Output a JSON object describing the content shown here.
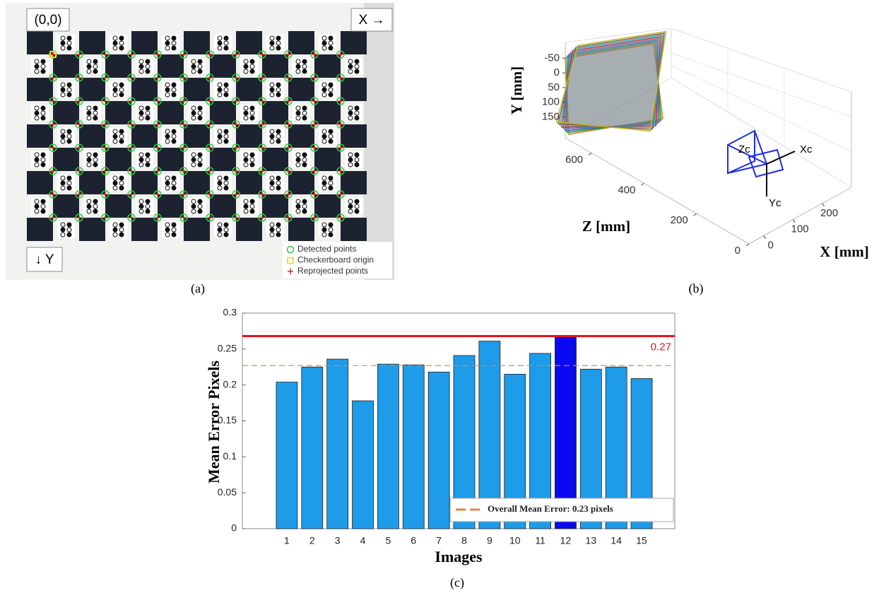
{
  "panel_a": {
    "label": "(a)",
    "origin_label": "(0,0)",
    "x_label": "X →",
    "y_label": "↓ Y",
    "legend": [
      {
        "name": "Detected points",
        "color": "#2ecc40"
      },
      {
        "name": "Checkerboard origin",
        "color": "#f5d300"
      },
      {
        "name": "Reprojected points",
        "color": "#e8261b"
      }
    ]
  },
  "chart_data": [
    {
      "type": "3d",
      "label": "(b)",
      "xlabel": "X [mm]",
      "ylabel": "Y [mm]",
      "zlabel": "Z [mm]",
      "xlim": [
        -50,
        300
      ],
      "xticks": [
        0,
        100,
        200
      ],
      "ylim": [
        -75,
        185
      ],
      "yticks": [
        -50,
        0,
        50,
        100,
        150
      ],
      "zlim": [
        0,
        700
      ],
      "zticks": [
        0,
        200,
        400,
        600
      ],
      "camera_labels": [
        "Zc",
        "Xc",
        "Yc"
      ]
    },
    {
      "type": "bar",
      "label": "(c)",
      "xlabel": "Images",
      "ylabel": "Mean Error Pixels",
      "categories": [
        "1",
        "2",
        "3",
        "4",
        "5",
        "6",
        "7",
        "8",
        "9",
        "10",
        "11",
        "12",
        "13",
        "14",
        "15"
      ],
      "values": [
        0.204,
        0.225,
        0.236,
        0.178,
        0.229,
        0.228,
        0.218,
        0.241,
        0.261,
        0.215,
        0.244,
        0.268,
        0.222,
        0.225,
        0.209
      ],
      "colors": [
        "#1e9be9",
        "#1e9be9",
        "#1e9be9",
        "#1e9be9",
        "#1e9be9",
        "#1e9be9",
        "#1e9be9",
        "#1e9be9",
        "#1e9be9",
        "#1e9be9",
        "#1e9be9",
        "#0a0af0",
        "#1e9be9",
        "#1e9be9",
        "#1e9be9"
      ],
      "ylim": [
        0,
        0.3
      ],
      "yticks": [
        0,
        0.05,
        0.1,
        0.15,
        0.2,
        0.25,
        0.3
      ],
      "max_line": {
        "value": 0.268,
        "label": "0.27",
        "color": "#e8111b"
      },
      "mean_line": {
        "value": 0.227,
        "label": "Overall Mean Error: 0.23 pixels",
        "color": "#d9894a"
      }
    }
  ]
}
